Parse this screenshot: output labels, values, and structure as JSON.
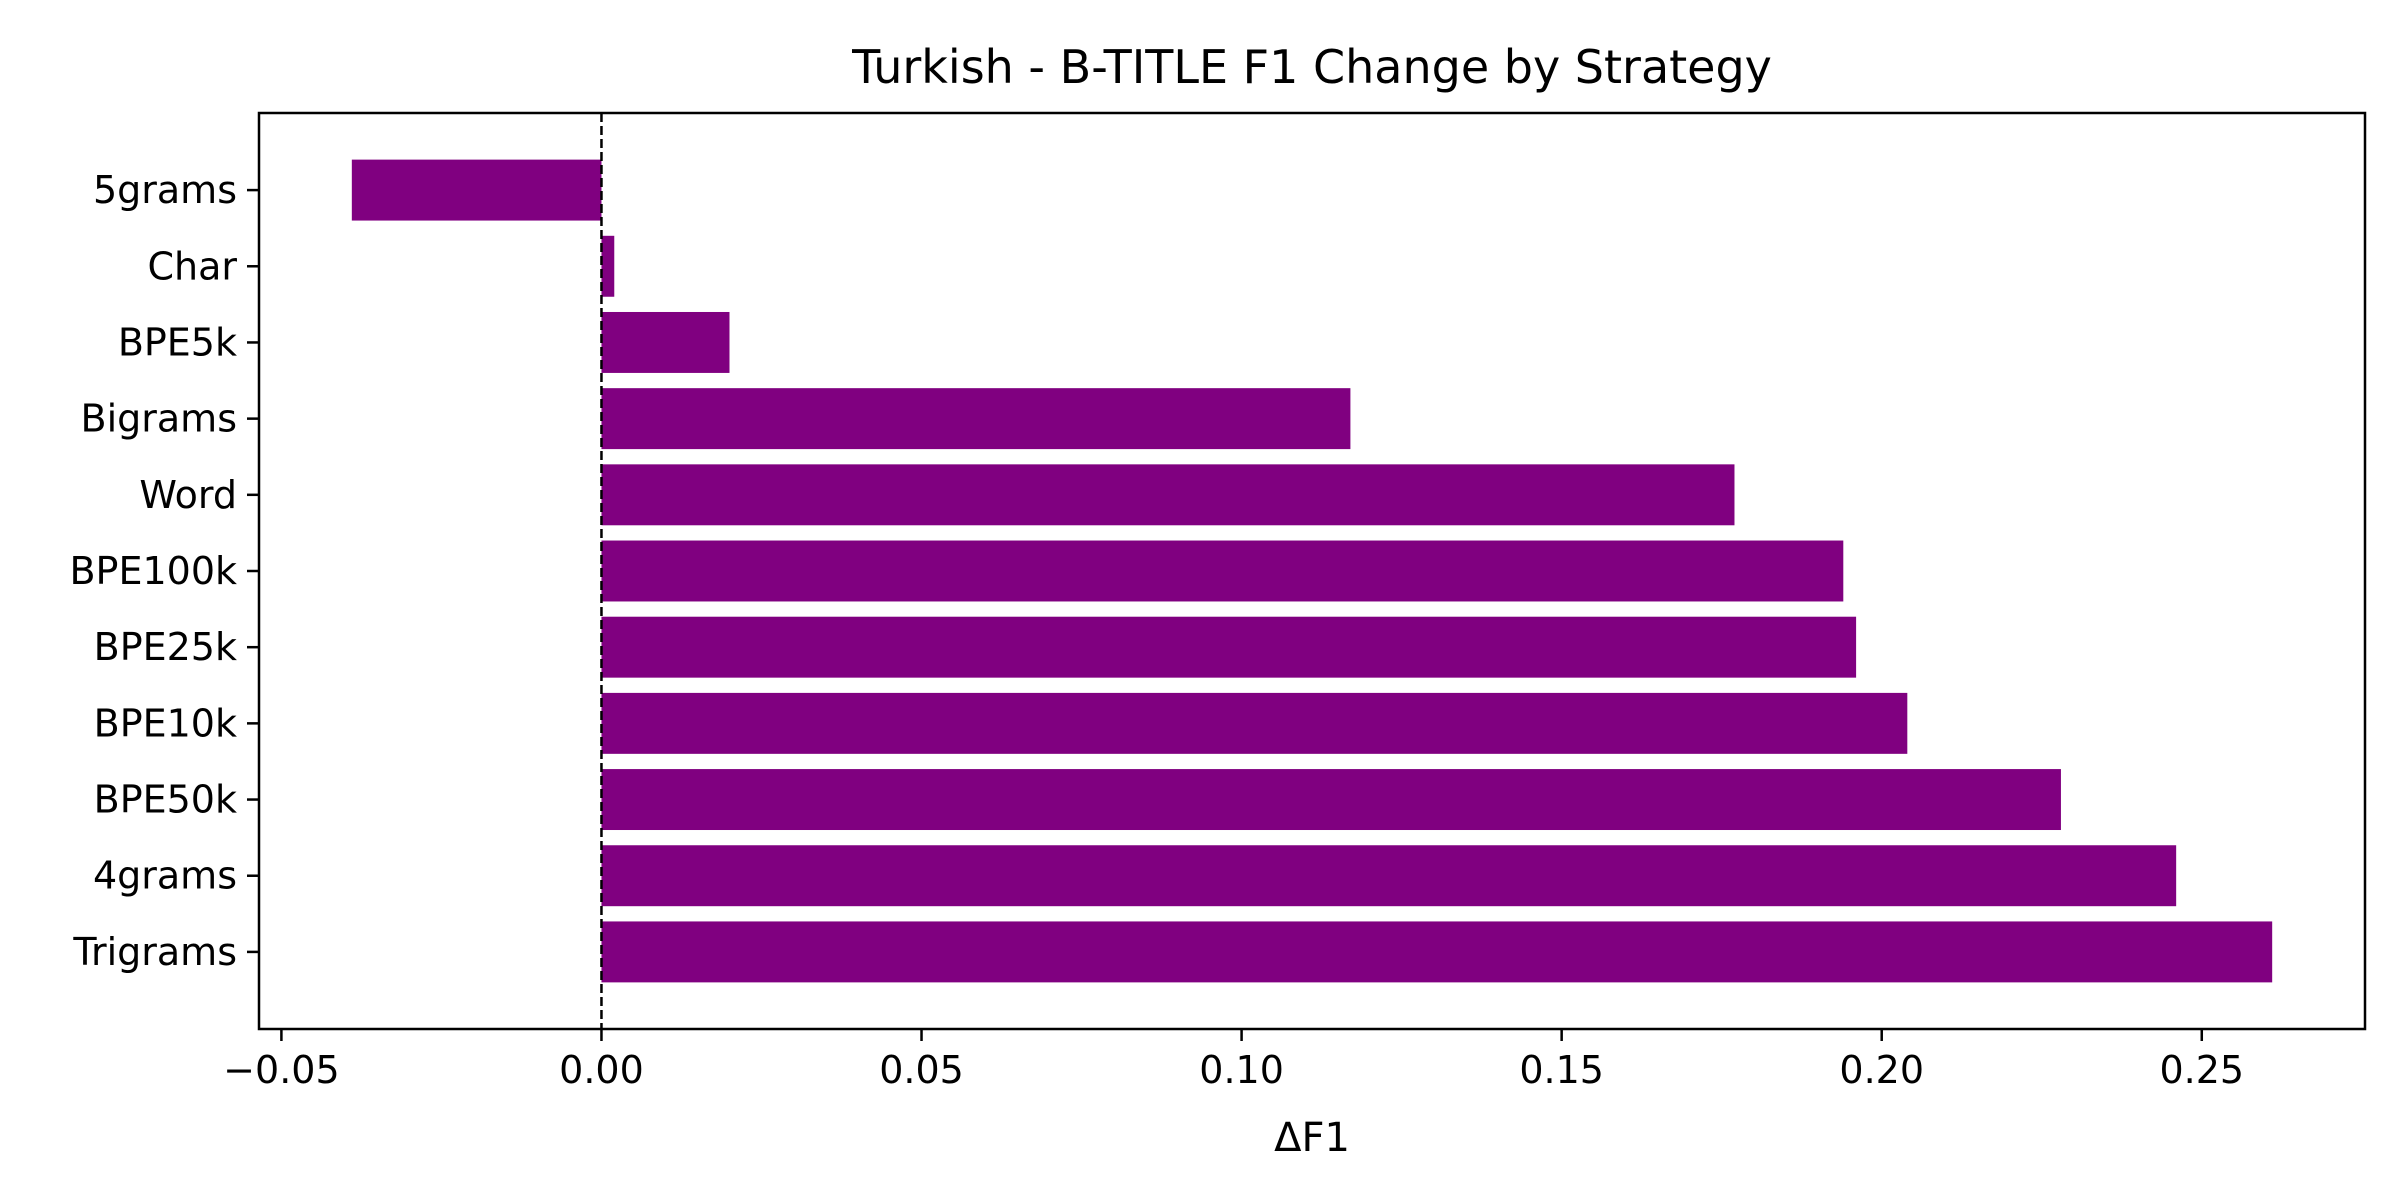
{
  "chart_data": {
    "type": "bar",
    "orientation": "horizontal",
    "title": "Turkish - B-TITLE F1 Change by Strategy",
    "xlabel": "ΔF1",
    "ylabel": "",
    "categories": [
      "5grams",
      "Char",
      "BPE5k",
      "Bigrams",
      "Word",
      "BPE100k",
      "BPE25k",
      "BPE10k",
      "BPE50k",
      "4grams",
      "Trigrams"
    ],
    "values": [
      -0.039,
      0.002,
      0.02,
      0.117,
      0.177,
      0.194,
      0.196,
      0.204,
      0.228,
      0.246,
      0.261
    ],
    "xlim": [
      -0.0535,
      0.2755
    ],
    "xticks": [
      -0.05,
      0.0,
      0.05,
      0.1,
      0.15,
      0.2,
      0.25
    ],
    "xtick_labels": [
      "−0.05",
      "0.00",
      "0.05",
      "0.10",
      "0.15",
      "0.20",
      "0.25"
    ],
    "reference_line": {
      "x": 0,
      "style": "dashed",
      "color": "#000000"
    },
    "bar_color": "#800080",
    "grid": false,
    "legend": "none"
  }
}
